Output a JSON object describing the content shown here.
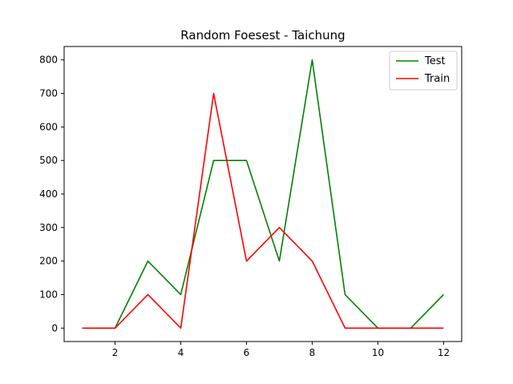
{
  "chart_data": {
    "type": "line",
    "title": "Random Foesest - Taichung",
    "xlabel": "",
    "ylabel": "",
    "x": [
      1,
      2,
      3,
      4,
      5,
      6,
      7,
      8,
      9,
      10,
      11,
      12
    ],
    "xlim": [
      0.45,
      12.55
    ],
    "ylim": [
      -40,
      840
    ],
    "x_ticks": [
      2,
      4,
      6,
      8,
      10,
      12
    ],
    "y_ticks": [
      0,
      100,
      200,
      300,
      400,
      500,
      600,
      700,
      800
    ],
    "grid": false,
    "legend_position": "top-right",
    "series": [
      {
        "name": "Test",
        "color": "#008000",
        "values": [
          0,
          0,
          200,
          100,
          500,
          500,
          200,
          800,
          100,
          0,
          0,
          100
        ]
      },
      {
        "name": "Train",
        "color": "#ff0000",
        "values": [
          0,
          0,
          100,
          0,
          700,
          200,
          300,
          200,
          0,
          0,
          0,
          0
        ]
      }
    ]
  }
}
